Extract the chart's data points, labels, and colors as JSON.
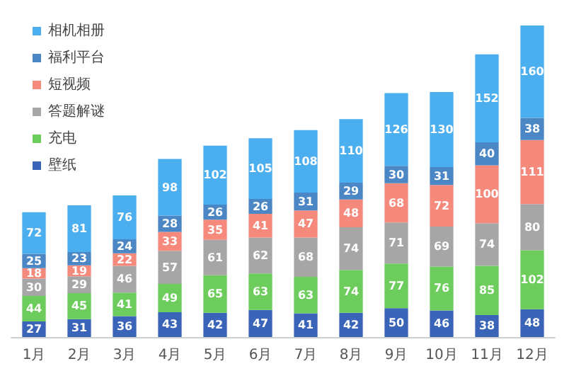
{
  "chart_data": {
    "type": "bar",
    "stacked": true,
    "data_labels": true,
    "legend": "top left",
    "categories": [
      "1月",
      "2月",
      "3月",
      "4月",
      "5月",
      "6月",
      "7月",
      "8月",
      "9月",
      "10月",
      "11月",
      "12月"
    ],
    "series": [
      {
        "name": "壁纸",
        "color": "#3a64b8",
        "values": [
          27,
          31,
          36,
          43,
          42,
          47,
          41,
          42,
          50,
          46,
          38,
          48
        ]
      },
      {
        "name": "充电",
        "color": "#6ccd5c",
        "values": [
          44,
          45,
          41,
          49,
          65,
          63,
          63,
          74,
          77,
          76,
          85,
          102
        ]
      },
      {
        "name": "答题解谜",
        "color": "#a6a6a6",
        "values": [
          30,
          29,
          46,
          57,
          61,
          62,
          68,
          74,
          71,
          69,
          74,
          80
        ]
      },
      {
        "name": "短视频",
        "color": "#f4897c",
        "values": [
          18,
          19,
          22,
          33,
          35,
          41,
          47,
          48,
          68,
          72,
          100,
          111
        ]
      },
      {
        "name": "福利平台",
        "color": "#4b86c5",
        "values": [
          25,
          23,
          24,
          28,
          26,
          26,
          31,
          29,
          30,
          31,
          40,
          38
        ]
      },
      {
        "name": "相机相册",
        "color": "#4aaeef",
        "values": [
          72,
          81,
          76,
          98,
          102,
          105,
          108,
          110,
          126,
          130,
          152,
          160
        ]
      }
    ]
  }
}
